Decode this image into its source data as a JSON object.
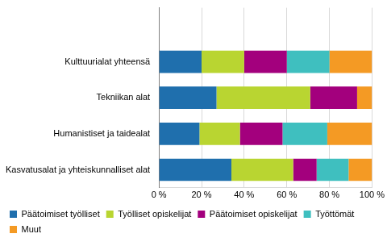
{
  "chart_data": {
    "type": "bar",
    "orientation": "horizontal",
    "stacked": true,
    "grid": true,
    "legend": "bottom",
    "categories": [
      null,
      "Kulttuurialat yhteensä",
      "Tekniikan alat",
      "Humanistiset ja taidealat",
      "Kasvatusalat ja yhteiskunnalliset alat"
    ],
    "series": [
      {
        "name": "Päätoimiset työlliset",
        "color": "#1f6fad",
        "values": [
          null,
          20,
          27,
          19,
          34
        ]
      },
      {
        "name": "Työlliset opiskelijat",
        "color": "#b9d531",
        "values": [
          null,
          20,
          44,
          19,
          29
        ]
      },
      {
        "name": "Päätoimiset opiskelijat",
        "color": "#a3007d",
        "values": [
          null,
          20,
          22,
          20,
          11
        ]
      },
      {
        "name": "Työttömät",
        "color": "#3fbfbf",
        "values": [
          null,
          20,
          0,
          21,
          15
        ]
      },
      {
        "name": "Muut",
        "color": "#f49a24",
        "values": [
          null,
          20,
          7,
          21,
          11
        ]
      }
    ],
    "xlim": [
      0,
      100
    ],
    "xticks": [
      {
        "value": 0,
        "label": "0 %"
      },
      {
        "value": 20,
        "label": "20 %"
      },
      {
        "value": 40,
        "label": "40 %"
      },
      {
        "value": 60,
        "label": "60 %"
      },
      {
        "value": 80,
        "label": "80 %"
      },
      {
        "value": 100,
        "label": "100 %"
      }
    ]
  }
}
